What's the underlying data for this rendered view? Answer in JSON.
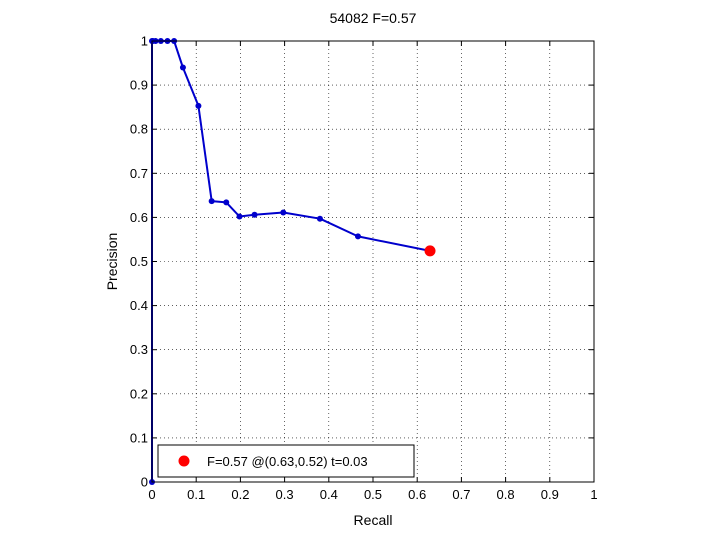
{
  "chart_data": {
    "type": "line",
    "title": "54082 F=0.57",
    "xlabel": "Recall",
    "ylabel": "Precision",
    "xlim": [
      0,
      1
    ],
    "ylim": [
      0,
      1
    ],
    "xticks": [
      "0",
      "0.1",
      "0.2",
      "0.3",
      "0.4",
      "0.5",
      "0.6",
      "0.7",
      "0.8",
      "0.9",
      "1"
    ],
    "yticks": [
      "0",
      "0.1",
      "0.2",
      "0.3",
      "0.4",
      "0.5",
      "0.6",
      "0.7",
      "0.8",
      "0.9",
      "1"
    ],
    "grid": true,
    "series": [
      {
        "color": "#0000cc",
        "x": [
          0,
          0,
          0.002,
          0.008,
          0.02,
          0.035,
          0.05,
          0.07,
          0.105,
          0.135,
          0.168,
          0.198,
          0.232,
          0.297,
          0.38,
          0.466,
          0.629
        ],
        "y": [
          0,
          1.0,
          1.0,
          1.0,
          1.0,
          1.0,
          1.0,
          0.94,
          0.853,
          0.637,
          0.634,
          0.602,
          0.606,
          0.611,
          0.597,
          0.557,
          0.524
        ]
      }
    ],
    "best_point": {
      "x": 0.629,
      "y": 0.524,
      "color": "#ff0000"
    },
    "legend": {
      "location": "bottom-left",
      "label": "F=0.57 @(0.63,0.52) t=0.03"
    }
  }
}
